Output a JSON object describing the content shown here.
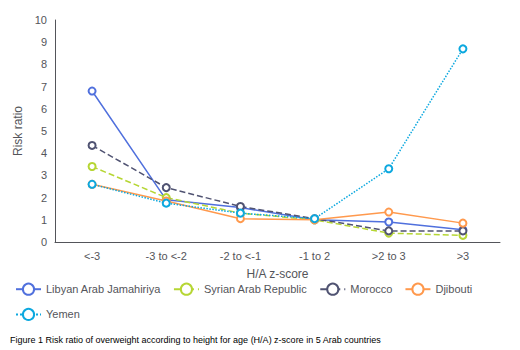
{
  "chart_data": {
    "type": "line",
    "categories": [
      "<-3",
      "-3 to <-2",
      "-2 to <-1",
      "-1 to 2",
      ">2 to 3",
      ">3"
    ],
    "series": [
      {
        "name": "Libyan Arab Jamahiriya",
        "values": [
          6.8,
          1.9,
          1.55,
          1.0,
          0.9,
          0.55
        ],
        "line_style": "solid"
      },
      {
        "name": "Syrian Arab Republic",
        "values": [
          3.4,
          2.0,
          1.3,
          1.0,
          0.4,
          0.3
        ],
        "line_style": "dashed"
      },
      {
        "name": "Morocco",
        "values": [
          4.35,
          2.45,
          1.6,
          1.05,
          0.5,
          0.5
        ],
        "line_style": "dashed"
      },
      {
        "name": "Djibouti",
        "values": [
          2.6,
          1.85,
          1.05,
          1.0,
          1.35,
          0.85
        ],
        "line_style": "solid"
      },
      {
        "name": "Yemen",
        "values": [
          2.6,
          1.75,
          1.3,
          1.05,
          3.3,
          8.7
        ],
        "line_style": "dotted"
      }
    ],
    "ylabel": "Risk ratio",
    "xlabel": "H/A z-score",
    "ylim": [
      0,
      10
    ],
    "yticks": [
      0,
      1,
      2,
      3,
      4,
      5,
      6,
      7,
      8,
      9,
      10
    ],
    "grid": false,
    "legend": "bottom",
    "annotations": [
      "Figure 1 Risk ratio of overweight according to height for age (H/A) z-score in 5 Arab countries"
    ]
  }
}
